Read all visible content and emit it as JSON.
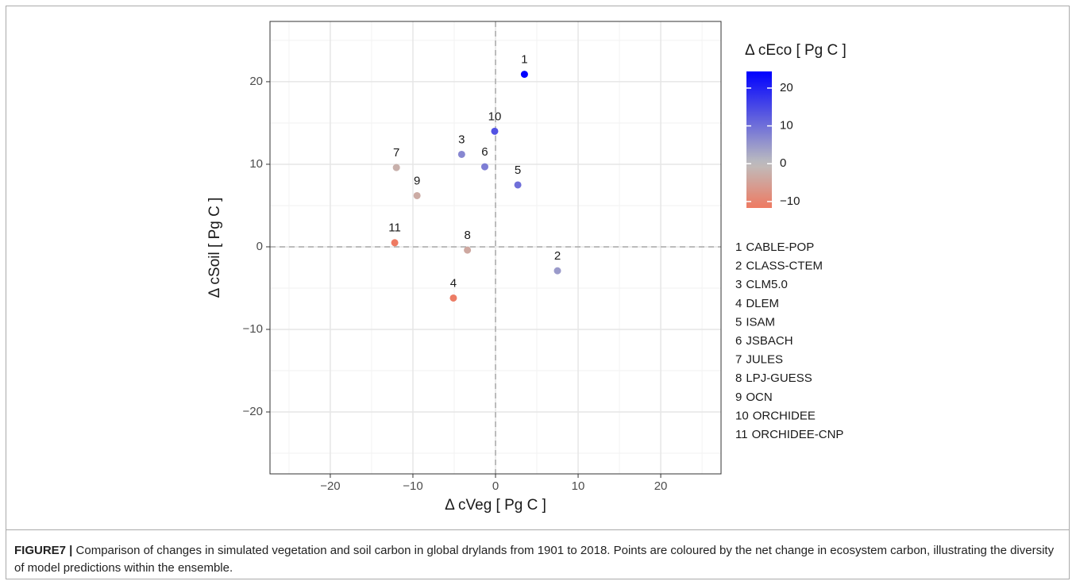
{
  "chart_data": {
    "type": "scatter",
    "x_label": "Δ cVeg  [ Pg C ]",
    "y_label": "Δ cSoil  [ Pg C ]",
    "color_label": "Δ cEco  [ Pg C ]",
    "point_labels": [
      "1",
      "2",
      "3",
      "4",
      "5",
      "6",
      "7",
      "8",
      "9",
      "10",
      "11"
    ],
    "models": [
      "CABLE-POP",
      "CLASS-CTEM",
      "CLM5.0",
      "DLEM",
      "ISAM",
      "JSBACH",
      "JULES",
      "LPJ-GUESS",
      "OCN",
      "ORCHIDEE",
      "ORCHIDEE-CNP"
    ],
    "x": [
      3.5,
      7.5,
      -4.1,
      -5.1,
      2.7,
      -1.3,
      -12.0,
      -3.4,
      -9.5,
      -0.1,
      -12.2
    ],
    "y": [
      20.9,
      -2.9,
      11.2,
      -6.2,
      7.5,
      9.7,
      9.6,
      -0.4,
      6.2,
      14.0,
      0.5
    ],
    "c": [
      24.4,
      4.6,
      7.1,
      -11.3,
      10.2,
      8.4,
      -2.4,
      -3.8,
      -3.3,
      13.9,
      -11.7
    ],
    "color_low": "#ee7a62",
    "color_mid": "#bebebe",
    "color_high": "#0000ff",
    "ctick_values": [
      20,
      10,
      0,
      {
        "value": -10,
        "label": "−10"
      }
    ],
    "xlim": [
      -27.3,
      27.3
    ],
    "ylim": [
      -27.5,
      27.3
    ],
    "xticks": [
      {
        "value": -20,
        "label": "−20"
      },
      {
        "value": -10,
        "label": "−10"
      },
      0,
      10,
      20
    ],
    "yticks": [
      20,
      10,
      0,
      {
        "value": -10,
        "label": "−10"
      },
      {
        "value": -20,
        "label": "−20"
      }
    ],
    "minor_xticks": [
      -25,
      -15,
      -5,
      5,
      15,
      25
    ],
    "minor_yticks": [
      25,
      15,
      5,
      -5,
      -15,
      -25
    ],
    "ref_x": 0,
    "ref_y": 0,
    "grid": true
  },
  "caption": {
    "label": "FIGURE7 |",
    "text": "Comparison of changes in simulated vegetation and soil carbon in global drylands from 1901 to 2018. Points are coloured by the net change in ecosystem carbon, illustrating the diversity of model predictions within the ensemble."
  }
}
